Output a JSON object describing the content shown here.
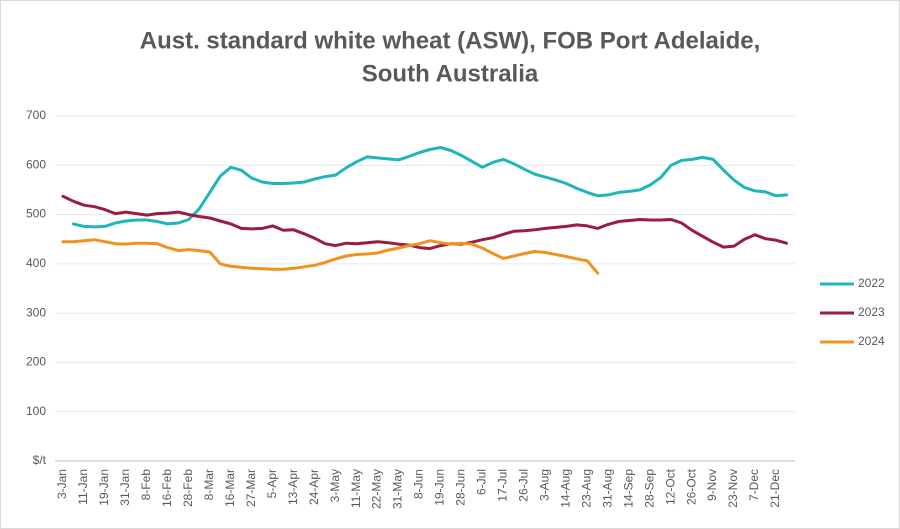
{
  "chart_data": {
    "type": "line",
    "title": [
      "Aust. standard white wheat (ASW), FOB Port Adelaide,",
      "South Australia"
    ],
    "categories": [
      "3-Jan",
      null,
      "11-Jan",
      null,
      "19-Jan",
      null,
      "31-Jan",
      null,
      "8-Feb",
      null,
      "16-Feb",
      null,
      "28-Feb",
      null,
      "8-Mar",
      null,
      "16-Mar",
      null,
      "27-Mar",
      null,
      "5-Apr",
      null,
      "13-Apr",
      null,
      "24-Apr",
      null,
      "3-May",
      null,
      "11-May",
      null,
      "22-May",
      null,
      "31-May",
      null,
      "8-Jun",
      null,
      "19-Jun",
      null,
      "28-Jun",
      null,
      "6-Jul",
      null,
      "17-Jul",
      null,
      "26-Jul",
      null,
      "3-Aug",
      null,
      "14-Aug",
      null,
      "23-Aug",
      null,
      "31-Aug",
      null,
      "14-Sep",
      null,
      "28-Sep",
      null,
      "12-Oct",
      null,
      "26-Oct",
      null,
      "9-Nov",
      null,
      "23-Nov",
      null,
      "7-Dec",
      null,
      "21-Dec",
      null
    ],
    "series": [
      {
        "name": "2022",
        "color": "#1fb5bd",
        "values": [
          null,
          481,
          476,
          475,
          476,
          483,
          487,
          489,
          489,
          486,
          481,
          483,
          490,
          512,
          545,
          578,
          596,
          590,
          574,
          566,
          563,
          563,
          564,
          566,
          572,
          577,
          580,
          595,
          607,
          617,
          615,
          613,
          611,
          618,
          626,
          632,
          636,
          630,
          620,
          608,
          596,
          606,
          612,
          603,
          592,
          582,
          576,
          570,
          563,
          553,
          545,
          538,
          540,
          545,
          547,
          550,
          560,
          575,
          600,
          610,
          612,
          616,
          612,
          590,
          570,
          555,
          548,
          546,
          538,
          540
        ]
      },
      {
        "name": "2023",
        "color": "#9b1c43",
        "values": [
          537,
          527,
          519,
          516,
          510,
          502,
          505,
          502,
          499,
          502,
          503,
          505,
          500,
          496,
          493,
          487,
          481,
          472,
          471,
          472,
          477,
          468,
          469,
          461,
          452,
          441,
          437,
          442,
          441,
          443,
          445,
          443,
          440,
          438,
          433,
          431,
          437,
          441,
          440,
          444,
          449,
          453,
          460,
          466,
          467,
          469,
          472,
          474,
          476,
          479,
          477,
          472,
          480,
          486,
          488,
          490,
          489,
          489,
          490,
          483,
          468,
          456,
          444,
          434,
          436,
          450,
          459,
          451,
          448,
          442
        ]
      },
      {
        "name": "2024",
        "color": "#f0921e",
        "values": [
          445,
          445,
          447,
          449,
          445,
          441,
          440,
          442,
          442,
          441,
          433,
          427,
          429,
          427,
          424,
          400,
          395,
          393,
          391,
          390,
          389,
          389,
          391,
          394,
          397,
          403,
          410,
          416,
          419,
          420,
          422,
          428,
          432,
          437,
          441,
          447,
          443,
          440,
          442,
          440,
          432,
          421,
          411,
          416,
          421,
          425,
          423,
          419,
          415,
          410,
          406,
          381,
          null,
          null,
          null,
          null,
          null,
          null,
          null,
          null,
          null,
          null,
          null,
          null,
          null,
          null,
          null,
          null,
          null,
          null
        ]
      }
    ],
    "ylim": [
      0,
      700
    ],
    "yticks": [
      {
        "value": 0,
        "label": "$/t"
      },
      100,
      200,
      300,
      400,
      500,
      600,
      700
    ],
    "grid": true,
    "legend": "right"
  }
}
